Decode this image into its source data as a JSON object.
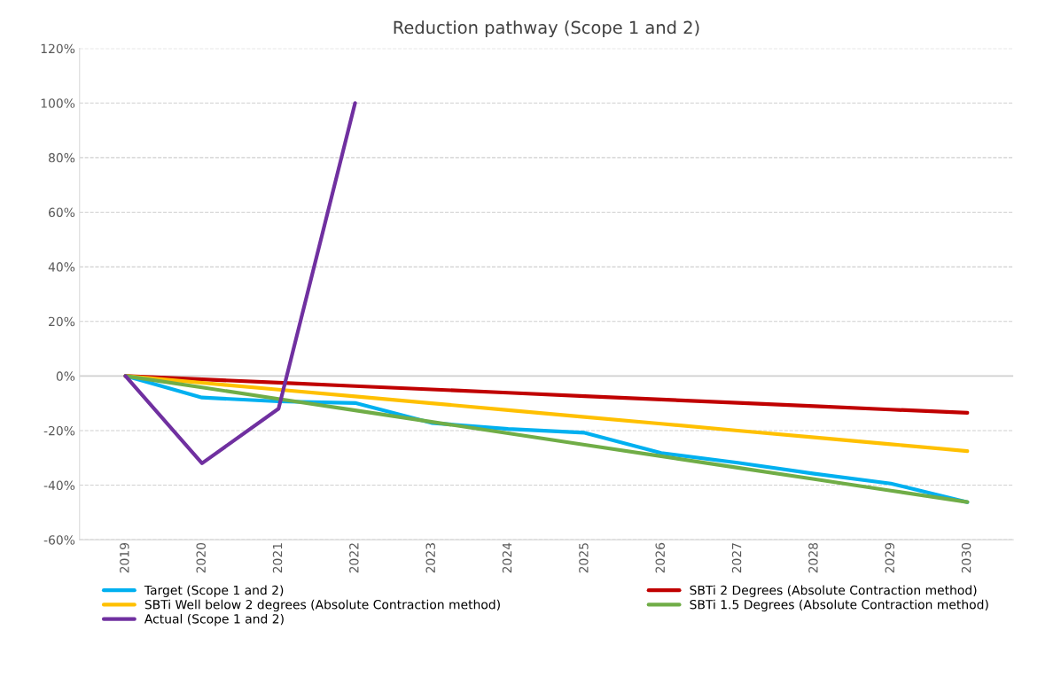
{
  "chart_data": {
    "type": "line",
    "title": "Reduction pathway (Scope 1 and 2)",
    "categories": [
      "2019",
      "2020",
      "2021",
      "2022",
      "2023",
      "2024",
      "2025",
      "2026",
      "2027",
      "2028",
      "2029",
      "2030"
    ],
    "series": [
      {
        "name": "Target (Scope 1 and 2)",
        "color": "#00b0f0",
        "values": [
          0,
          -7.9,
          -9.3,
          -9.9,
          -17.2,
          -19.4,
          -20.8,
          -28.2,
          -31.8,
          -35.8,
          -39.4,
          -46.2
        ]
      },
      {
        "name": "SBTi 2 Degrees (Absolute Contraction method)",
        "color": "#c00000",
        "values": [
          0,
          -1.23,
          -2.46,
          -3.69,
          -4.92,
          -6.15,
          -7.38,
          -8.61,
          -9.84,
          -11.07,
          -12.3,
          -13.5
        ]
      },
      {
        "name": "SBTi Well below 2 degrees (Absolute Contraction method)",
        "color": "#ffc000",
        "values": [
          0,
          -2.5,
          -5.0,
          -7.5,
          -10.0,
          -12.5,
          -15.0,
          -17.5,
          -20.0,
          -22.5,
          -25.0,
          -27.5
        ]
      },
      {
        "name": "SBTi 1.5 Degrees (Absolute Contraction method)",
        "color": "#70ad47",
        "values": [
          0,
          -4.2,
          -8.4,
          -12.6,
          -16.8,
          -21.0,
          -25.2,
          -29.4,
          -33.6,
          -37.8,
          -42.0,
          -46.2
        ]
      },
      {
        "name": "Actual (Scope 1 and 2)",
        "color": "#7030a0",
        "values": [
          0,
          -32,
          -12,
          100,
          null,
          null,
          null,
          null,
          null,
          null,
          null,
          null
        ]
      }
    ],
    "ylim": [
      -60,
      120
    ],
    "yticks": [
      {
        "value": -60,
        "label": "-60%"
      },
      {
        "value": -40,
        "label": "-40%"
      },
      {
        "value": -20,
        "label": "-20%"
      },
      {
        "value": 0,
        "label": "0%"
      },
      {
        "value": 20,
        "label": "20%"
      },
      {
        "value": 40,
        "label": "40%"
      },
      {
        "value": 60,
        "label": "60%"
      },
      {
        "value": 80,
        "label": "80%"
      },
      {
        "value": 100,
        "label": "100%"
      },
      {
        "value": 120,
        "label": "120%"
      }
    ],
    "grid": "y",
    "legend": "bottom",
    "marker": "none",
    "line_style": "solid"
  }
}
